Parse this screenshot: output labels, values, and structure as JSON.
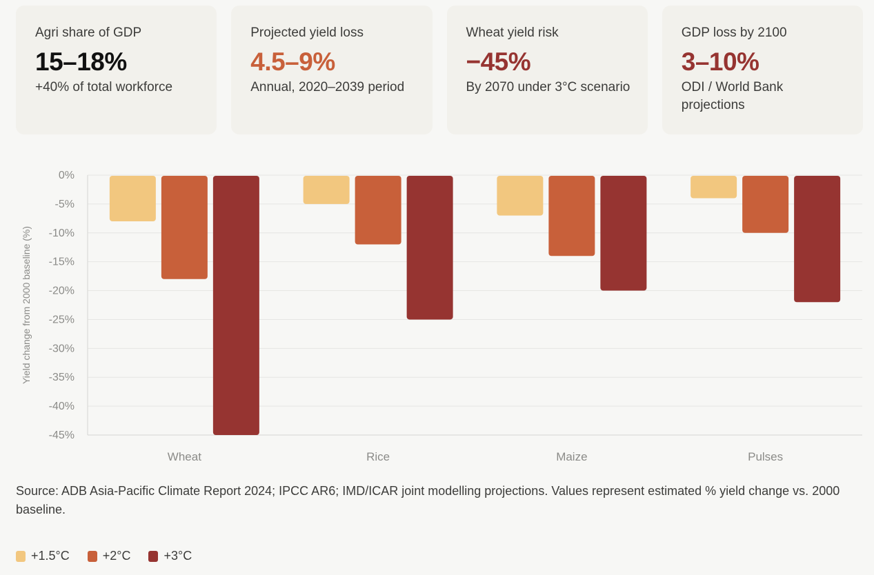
{
  "cards": [
    {
      "label": "Agri share of GDP",
      "value": "15–18%",
      "sub": "+40% of total workforce",
      "color": "#111111"
    },
    {
      "label": "Projected yield loss",
      "value": "4.5–9%",
      "sub": "Annual, 2020–2039 period",
      "color": "#c8603a"
    },
    {
      "label": "Wheat yield risk",
      "value": "−45%",
      "sub": "By 2070 under 3°C scenario",
      "color": "#963431"
    },
    {
      "label": "GDP loss by 2100",
      "value": "3–10%",
      "sub": "ODI / World Bank projections",
      "color": "#963431"
    }
  ],
  "chart_data": {
    "type": "bar",
    "title": "",
    "xlabel": "",
    "ylabel": "Yield change from 2000 baseline (%)",
    "categories": [
      "Wheat",
      "Rice",
      "Maize",
      "Pulses"
    ],
    "series": [
      {
        "name": "+1.5°C",
        "color": "#f2c77f",
        "values": [
          -8,
          -5,
          -7,
          -4
        ]
      },
      {
        "name": "+2°C",
        "color": "#c8603a",
        "values": [
          -18,
          -12,
          -14,
          -10
        ]
      },
      {
        "name": "+3°C",
        "color": "#963431",
        "values": [
          -45,
          -25,
          -20,
          -22
        ]
      }
    ],
    "ylim": [
      -45,
      0
    ],
    "yticks": [
      0,
      -5,
      -10,
      -15,
      -20,
      -25,
      -30,
      -35,
      -40,
      -45
    ],
    "ytick_labels": [
      "0%",
      "-5%",
      "-10%",
      "-15%",
      "-20%",
      "-25%",
      "-30%",
      "-35%",
      "-40%",
      "-45%"
    ],
    "grid": true,
    "legend_position": "bottom-left"
  },
  "source_note": "Source: ADB Asia-Pacific Climate Report 2024; IPCC AR6; IMD/ICAR joint modelling projections. Values represent estimated % yield change vs. 2000 baseline."
}
